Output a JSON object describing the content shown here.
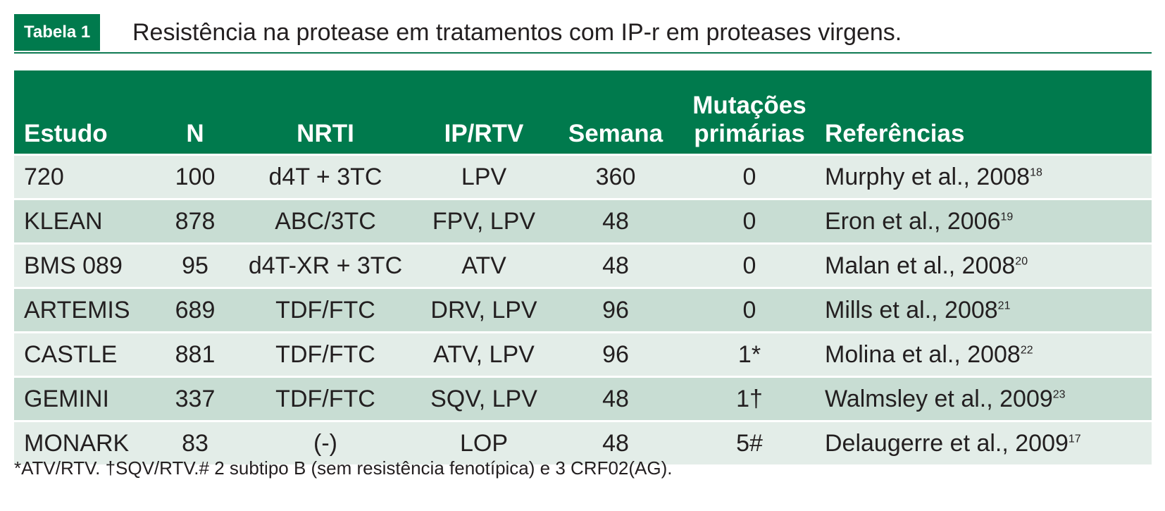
{
  "table": {
    "badge": "Tabela 1",
    "caption": "Resistência na protease em tratamentos com IP-r em proteases virgens.",
    "headers": {
      "estudo": "Estudo",
      "n": "N",
      "nrti": "NRTI",
      "iprtv": "IP/RTV",
      "semana": "Semana",
      "mutacoes_line1": "Mutações",
      "mutacoes_line2": "primárias",
      "referencias": "Referências"
    },
    "rows": [
      {
        "estudo": "720",
        "n": "100",
        "nrti": "d4T + 3TC",
        "iprtv": "LPV",
        "semana": "360",
        "mutacoes": "0",
        "ref": "Murphy et al., 2008",
        "ref_num": "18"
      },
      {
        "estudo": "KLEAN",
        "n": "878",
        "nrti": "ABC/3TC",
        "iprtv": "FPV, LPV",
        "semana": "48",
        "mutacoes": "0",
        "ref": "Eron et al., 2006",
        "ref_num": "19"
      },
      {
        "estudo": "BMS 089",
        "n": "95",
        "nrti": "d4T-XR + 3TC",
        "iprtv": "ATV",
        "semana": "48",
        "mutacoes": "0",
        "ref": "Malan et al., 2008",
        "ref_num": "20"
      },
      {
        "estudo": "ARTEMIS",
        "n": "689",
        "nrti": "TDF/FTC",
        "iprtv": "DRV, LPV",
        "semana": "96",
        "mutacoes": "0",
        "ref": "Mills et al., 2008",
        "ref_num": "21"
      },
      {
        "estudo": "CASTLE",
        "n": "881",
        "nrti": "TDF/FTC",
        "iprtv": "ATV, LPV",
        "semana": "96",
        "mutacoes": "1*",
        "ref": "Molina et al., 2008",
        "ref_num": "22"
      },
      {
        "estudo": "GEMINI",
        "n": "337",
        "nrti": "TDF/FTC",
        "iprtv": "SQV, LPV",
        "semana": "48",
        "mutacoes": "1†",
        "ref": "Walmsley et al., 2009",
        "ref_num": "23"
      },
      {
        "estudo": "MONARK",
        "n": "83",
        "nrti": "(-)",
        "iprtv": "LOP",
        "semana": "48",
        "mutacoes": "5#",
        "ref": "Delaugerre et al., 2009",
        "ref_num": "17"
      }
    ],
    "footnote": "*ATV/RTV. †SQV/RTV.# 2 subtipo B (sem resistência fenotípica) e 3 CRF02(AG)."
  },
  "colors": {
    "header_bg": "#007a4d",
    "row_light": "#e3ede8",
    "row_dark": "#c8ddd3"
  }
}
